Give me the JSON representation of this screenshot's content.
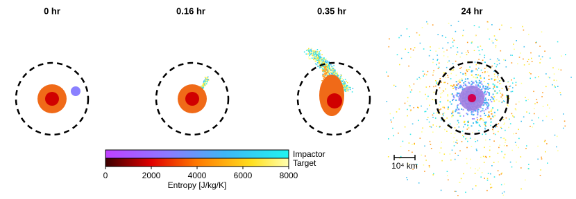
{
  "panels": [
    {
      "title": "0 hr"
    },
    {
      "title": "0.16 hr"
    },
    {
      "title": "0.35 hr"
    },
    {
      "title": "24 hr"
    }
  ],
  "colorbar": {
    "rows": [
      "Impactor",
      "Target"
    ],
    "label": "Entropy [J/kg/K]",
    "lim": [
      0,
      8000
    ],
    "ticks": [
      0,
      2000,
      4000,
      6000,
      8000
    ]
  },
  "scale_bar": {
    "label": "10⁴ km"
  }
}
